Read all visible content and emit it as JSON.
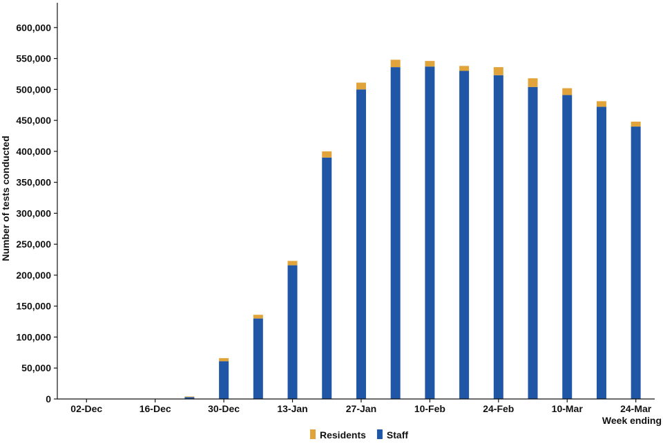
{
  "chart_data": {
    "type": "bar",
    "stacked": true,
    "categories": [
      "02-Dec",
      "09-Dec",
      "16-Dec",
      "23-Dec",
      "30-Dec",
      "06-Jan",
      "13-Jan",
      "20-Jan",
      "27-Jan",
      "03-Feb",
      "10-Feb",
      "17-Feb",
      "24-Feb",
      "03-Mar",
      "10-Mar",
      "17-Mar",
      "24-Mar"
    ],
    "x_tick_labels": [
      "02-Dec",
      "16-Dec",
      "30-Dec",
      "13-Jan",
      "27-Jan",
      "10-Feb",
      "24-Feb",
      "10-Mar",
      "24-Mar"
    ],
    "series": [
      {
        "name": "Staff",
        "color": "#1f56a5",
        "values": [
          0,
          0,
          0,
          3000,
          61000,
          130000,
          216000,
          390000,
          500000,
          536000,
          537000,
          530000,
          523000,
          504000,
          491000,
          472000,
          440000
        ]
      },
      {
        "name": "Residents",
        "color": "#e0a43a",
        "values": [
          0,
          0,
          0,
          1000,
          5000,
          6000,
          7000,
          10000,
          11000,
          12000,
          9000,
          8000,
          13000,
          14000,
          11000,
          9000,
          8000
        ]
      }
    ],
    "legend": [
      "Residents",
      "Staff"
    ],
    "legend_position": "bottom",
    "ylabel": "Number of tests conducted",
    "xlabel": "Week ending",
    "ylim": [
      0,
      640000
    ],
    "y_ticks": [
      0,
      50000,
      100000,
      150000,
      200000,
      250000,
      300000,
      350000,
      400000,
      450000,
      500000,
      550000,
      600000
    ],
    "y_tick_labels": [
      "0",
      "50,000",
      "100,000",
      "150,000",
      "200,000",
      "250,000",
      "300,000",
      "350,000",
      "400,000",
      "450,000",
      "500,000",
      "550,000",
      "600,000"
    ],
    "grid": false
  }
}
